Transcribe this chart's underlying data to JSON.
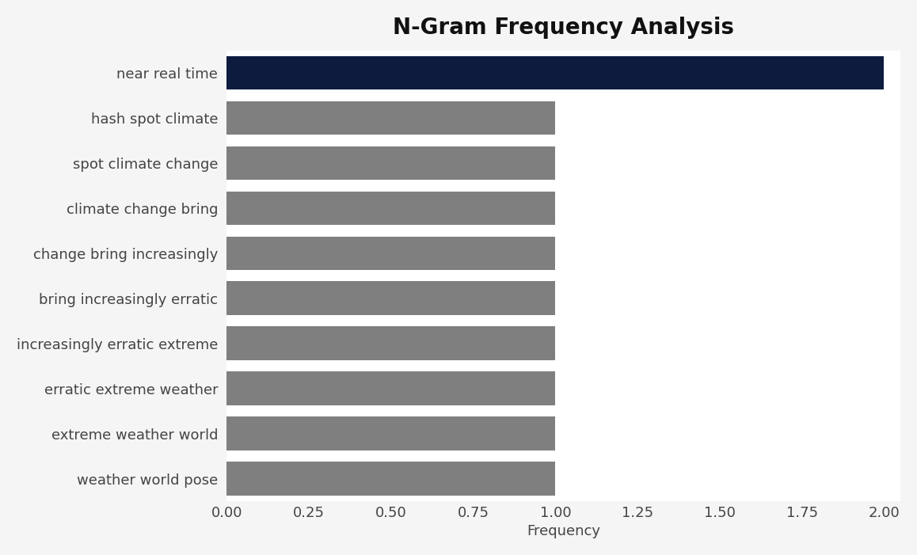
{
  "title": "N-Gram Frequency Analysis",
  "categories": [
    "weather world pose",
    "extreme weather world",
    "erratic extreme weather",
    "increasingly erratic extreme",
    "bring increasingly erratic",
    "change bring increasingly",
    "climate change bring",
    "spot climate change",
    "hash spot climate",
    "near real time"
  ],
  "values": [
    1,
    1,
    1,
    1,
    1,
    1,
    1,
    1,
    1,
    2
  ],
  "bar_colors": [
    "#7f7f7f",
    "#7f7f7f",
    "#7f7f7f",
    "#7f7f7f",
    "#7f7f7f",
    "#7f7f7f",
    "#7f7f7f",
    "#7f7f7f",
    "#7f7f7f",
    "#0d1b3e"
  ],
  "xlabel": "Frequency",
  "xlim": [
    0,
    2.05
  ],
  "xticks": [
    0.0,
    0.25,
    0.5,
    0.75,
    1.0,
    1.25,
    1.5,
    1.75,
    2.0
  ],
  "xtick_labels": [
    "0.00",
    "0.25",
    "0.50",
    "0.75",
    "1.00",
    "1.25",
    "1.50",
    "1.75",
    "2.00"
  ],
  "background_color": "#f5f5f5",
  "bar_background_color": "#ffffff",
  "title_fontsize": 20,
  "label_fontsize": 13,
  "tick_fontsize": 13,
  "bar_height": 0.75,
  "grid_color": "#ffffff",
  "text_color": "#444444"
}
